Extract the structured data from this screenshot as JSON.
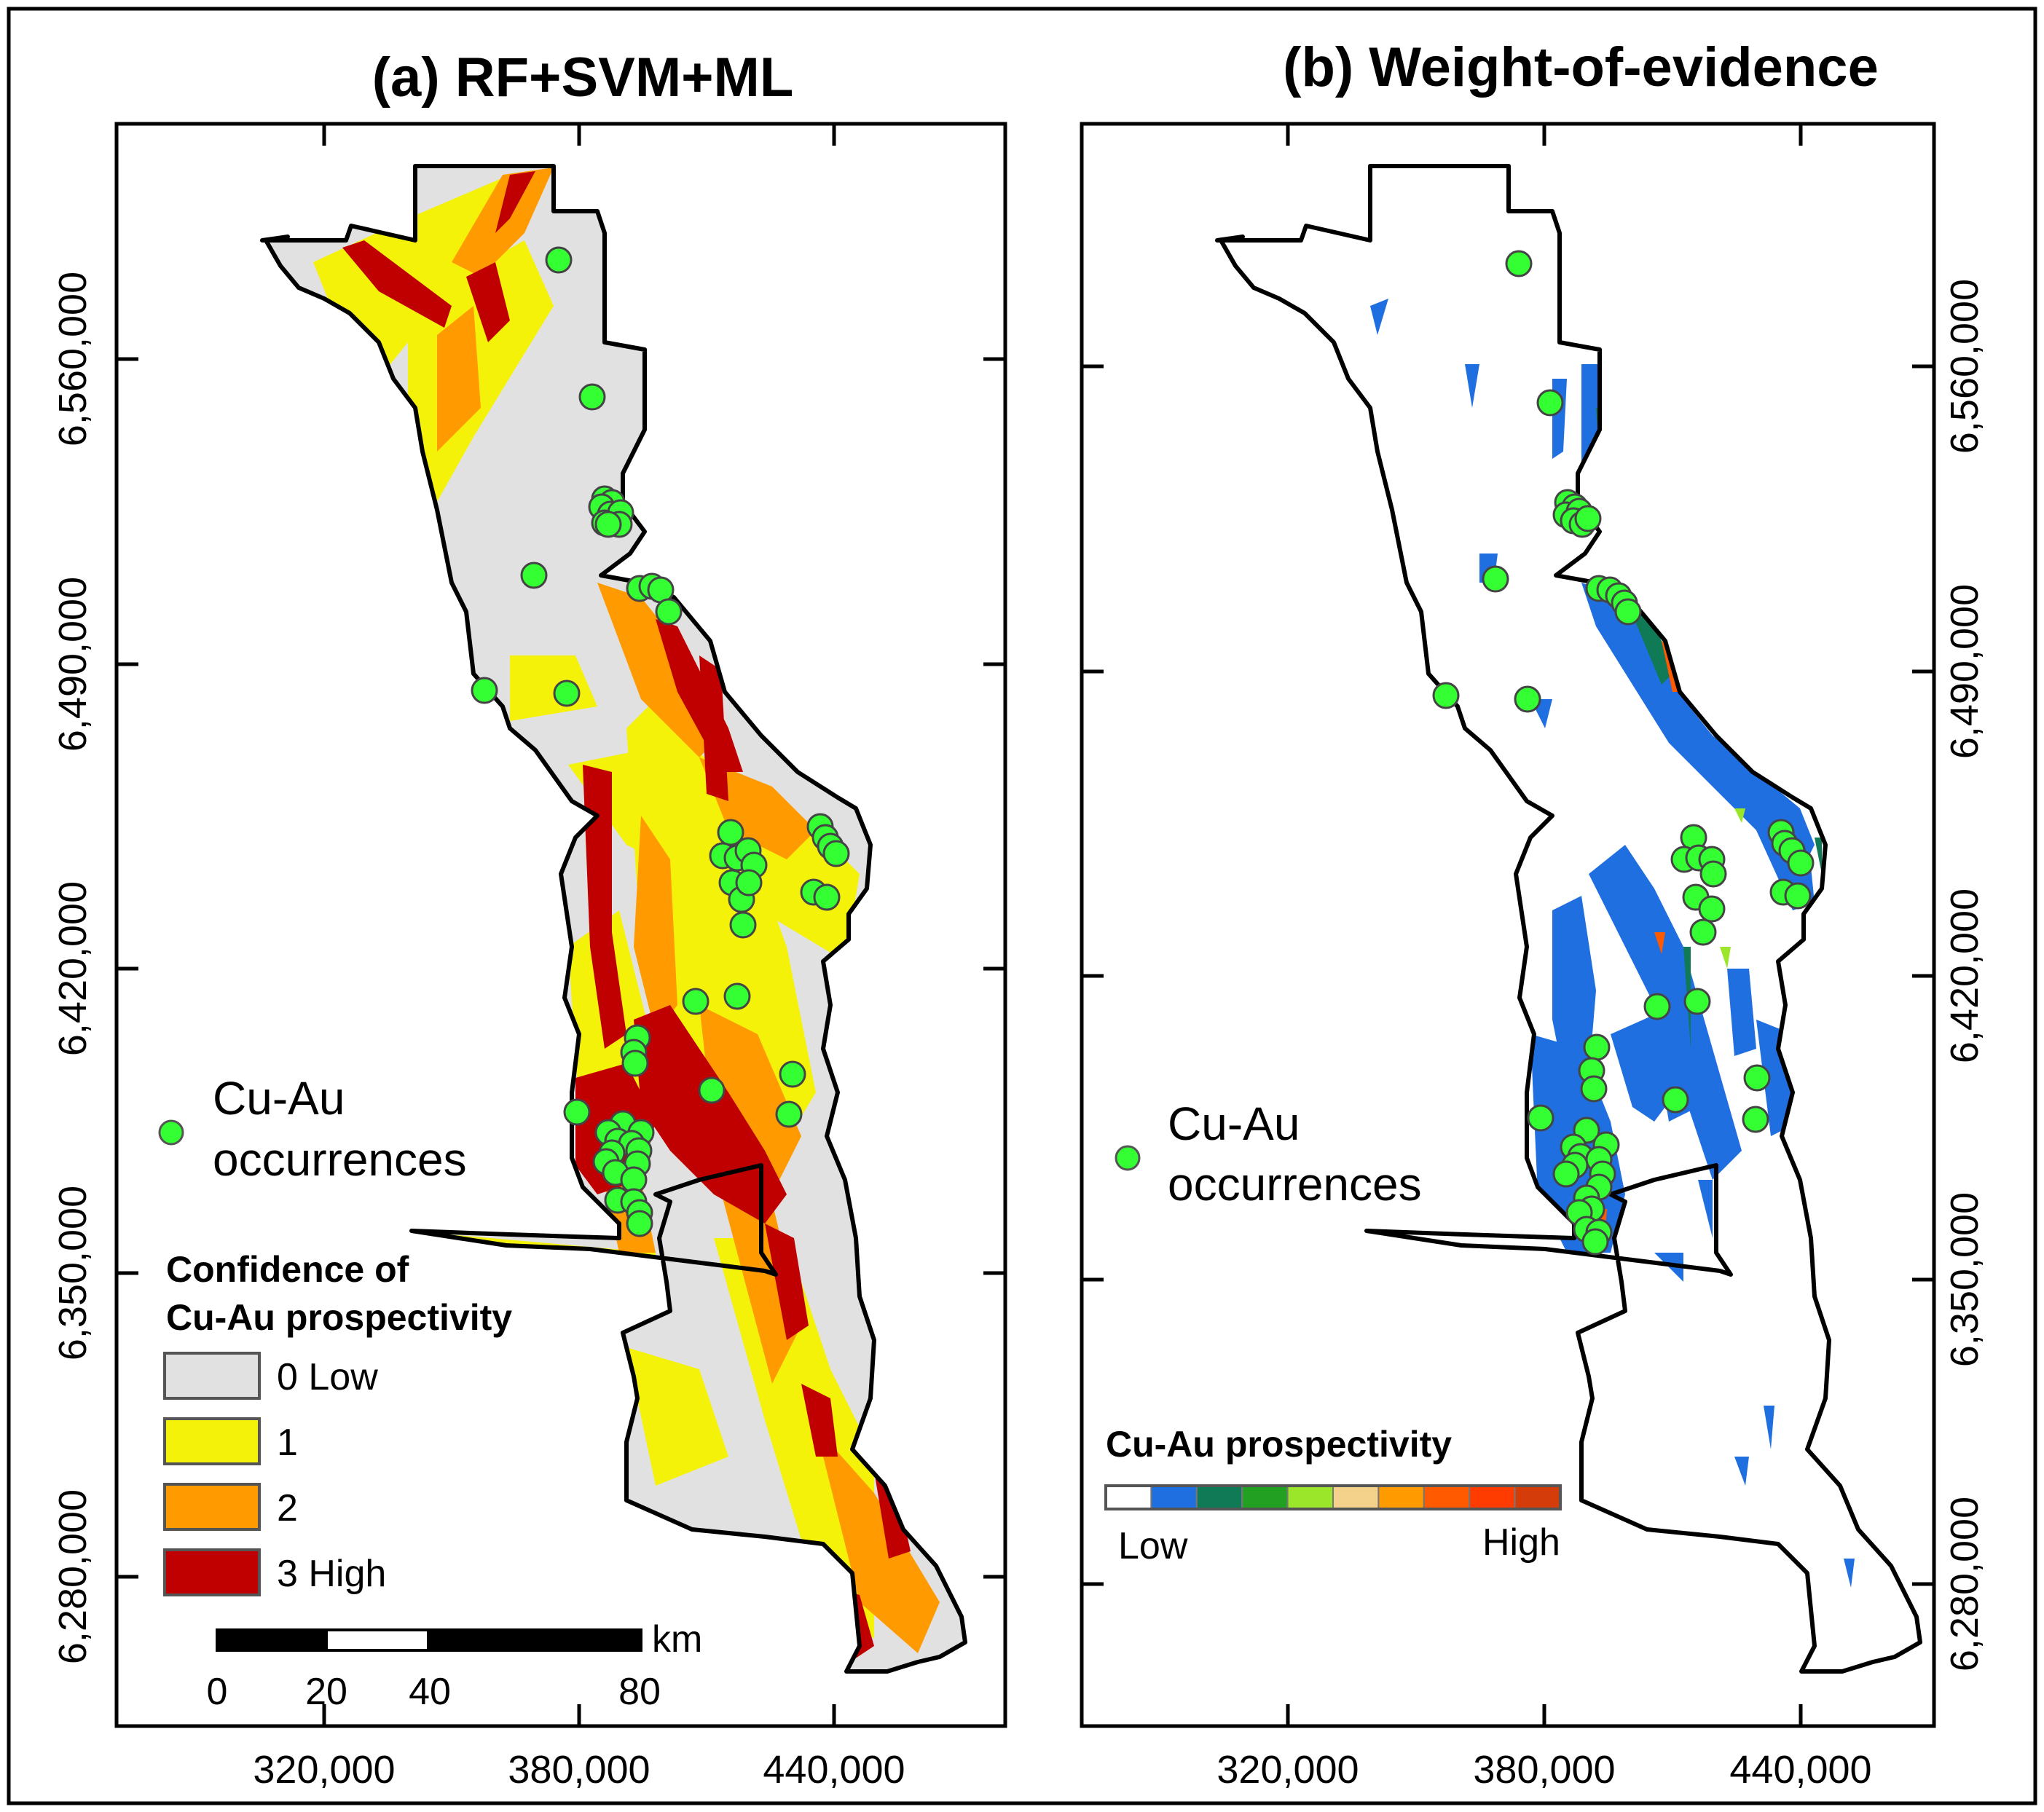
{
  "panel_a": {
    "title": "(a) RF+SVM+ML",
    "x_ticks": [
      "320,000",
      "380,000",
      "440,000"
    ],
    "y_ticks": [
      "6,560,000",
      "6,490,000",
      "6,420,000",
      "6,350,000",
      "6,280,000"
    ],
    "occurrence_label_1": "Cu-Au",
    "occurrence_label_2": "occurrences",
    "legend_title_1": "Confidence of",
    "legend_title_2": "Cu-Au prospectivity",
    "legend_items": [
      {
        "label": "0 Low",
        "color": "#e1e1e1"
      },
      {
        "label": "1",
        "color": "#f5f20a"
      },
      {
        "label": "2",
        "color": "#ff9a00"
      },
      {
        "label": "3 High",
        "color": "#c00000"
      }
    ],
    "scale_unit": "km",
    "scale_labels": [
      "0",
      "20",
      "40",
      "80"
    ]
  },
  "panel_b": {
    "title": "(b) Weight-of-evidence",
    "x_ticks": [
      "320,000",
      "380,000",
      "440,000"
    ],
    "y_ticks": [
      "6,560,000",
      "6,490,000",
      "6,420,000",
      "6,350,000",
      "6,280,000"
    ],
    "occurrence_label_1": "Cu-Au",
    "occurrence_label_2": "occurrences",
    "colorbar_title": "Cu-Au prospectivity",
    "colorbar_low": "Low",
    "colorbar_high": "High",
    "colorbar_colors": [
      "#ffffff",
      "#1f6fe0",
      "#0f7a55",
      "#22a022",
      "#9be62a",
      "#f5d28c",
      "#ff9a00",
      "#ff5a00",
      "#ff3c00",
      "#d43c0a"
    ]
  },
  "colors": {
    "occurrence": "#33ff33",
    "boundary": "#000000",
    "low": "#e1e1e1",
    "class1": "#f5f20a",
    "class2": "#ff9a00",
    "class3": "#c00000",
    "woe_blue": "#1f6fe0",
    "woe_green": "#0f7a55",
    "woe_orange": "#ff5a00"
  }
}
